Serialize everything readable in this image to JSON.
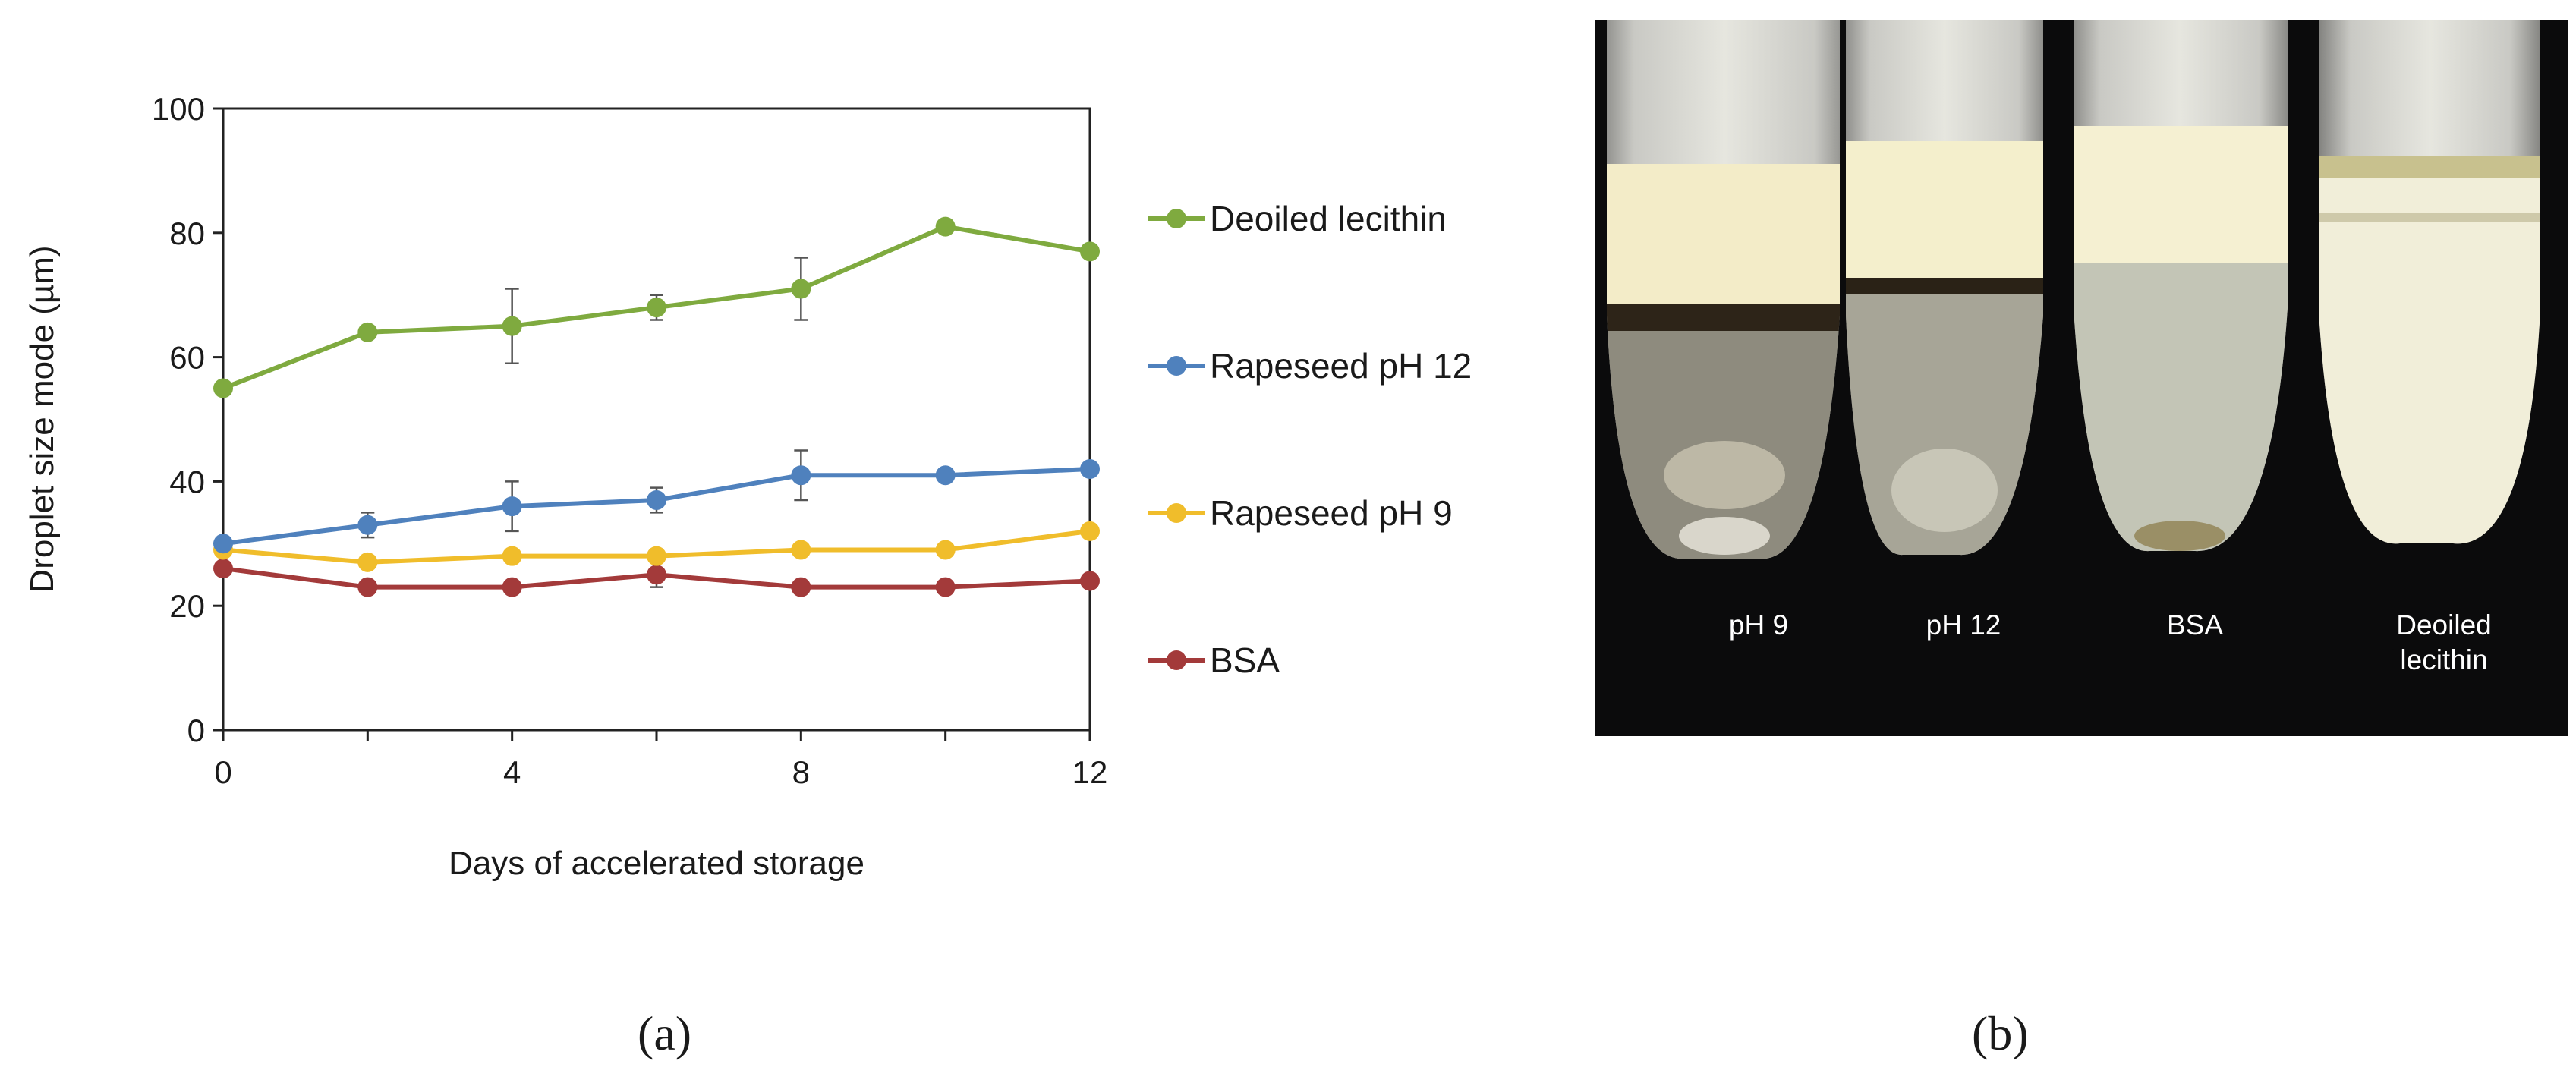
{
  "chart_data": {
    "type": "line",
    "title": "",
    "xlabel": "Days of accelerated  storage",
    "ylabel": "Droplet size mode  (µm)",
    "xlim": [
      0,
      12
    ],
    "ylim": [
      0,
      100
    ],
    "xticks": [
      "0",
      "4",
      "8",
      "12"
    ],
    "yticks": [
      "0",
      "20",
      "40",
      "60",
      "80",
      "100"
    ],
    "grid": false,
    "legend_position": "right",
    "series": [
      {
        "name": "Deoiled lecithin",
        "color": "#7faa3f",
        "x": [
          0,
          2,
          4,
          6,
          8,
          10,
          12
        ],
        "y": [
          55,
          64,
          65,
          68,
          71,
          81,
          77
        ],
        "err": [
          0,
          0,
          6,
          2,
          5,
          0,
          0
        ]
      },
      {
        "name": "Rapeseed pH 12",
        "color": "#4f81bd",
        "x": [
          0,
          2,
          4,
          6,
          8,
          10,
          12
        ],
        "y": [
          30,
          33,
          36,
          37,
          41,
          41,
          42
        ],
        "err": [
          0,
          2,
          4,
          2,
          4,
          0,
          0
        ]
      },
      {
        "name": "Rapeseed pH 9",
        "color": "#f0bd2b",
        "x": [
          0,
          2,
          4,
          6,
          8,
          10,
          12
        ],
        "y": [
          29,
          27,
          28,
          28,
          29,
          29,
          32
        ],
        "err": [
          0,
          0,
          0,
          0,
          0,
          0,
          0
        ]
      },
      {
        "name": "BSA",
        "color": "#a33a3a",
        "x": [
          0,
          2,
          4,
          6,
          8,
          10,
          12
        ],
        "y": [
          26,
          23,
          23,
          25,
          23,
          23,
          24
        ],
        "err": [
          0,
          0,
          0,
          2,
          0,
          0,
          0
        ]
      }
    ]
  },
  "panel_labels": {
    "a": "(a)",
    "b": "(b)"
  },
  "photo": {
    "tube_labels": [
      "pH 9",
      "pH 12",
      "BSA",
      "Deoiled",
      "lecithin"
    ]
  }
}
